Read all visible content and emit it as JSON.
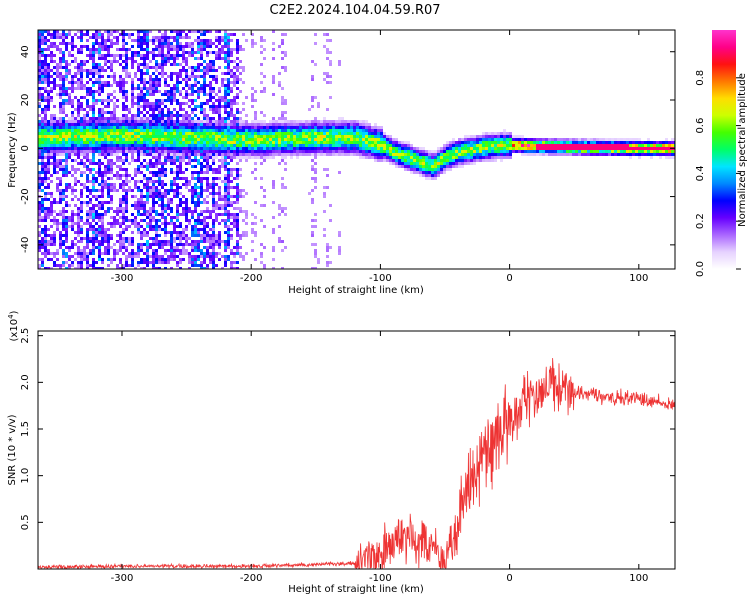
{
  "figure": {
    "title": "C2E2.2024.104.04.59.R07"
  },
  "chart_data": [
    {
      "type": "heatmap",
      "xlabel": "Height of straight line (km)",
      "ylabel": "Frequency (Hz)",
      "xlim": [
        -365,
        128
      ],
      "ylim": [
        -50,
        49
      ],
      "xticks": [
        -300,
        -200,
        -100,
        0,
        100
      ],
      "yticks": [
        -40,
        -20,
        0,
        20,
        40
      ],
      "colorbar": {
        "label": "Normalized spectral amplitude",
        "range": [
          0,
          1
        ],
        "ticks": [
          "0.0",
          "0.2",
          "0.4",
          "0.6",
          "0.8"
        ],
        "colors": [
          "#ffffff",
          "#e6d2ff",
          "#aa66ff",
          "#6600ff",
          "#0000ff",
          "#0088ff",
          "#00e5ff",
          "#00ff66",
          "#44ff00",
          "#ccff00",
          "#ffdd00",
          "#ff7700",
          "#ff1111",
          "#ff0088",
          "#ff33cc"
        ]
      },
      "ridge": {
        "x": [
          -365,
          -300,
          -250,
          -200,
          -150,
          -120,
          -100,
          -90,
          -80,
          -70,
          -60,
          -50,
          -40,
          -30,
          -20,
          -10,
          0,
          20,
          50,
          100,
          128
        ],
        "y": [
          5,
          6,
          5,
          4,
          5,
          5,
          2,
          -1,
          -3,
          -5,
          -7,
          -3,
          -1,
          0,
          1,
          1.5,
          2,
          1.5,
          1,
          0.5,
          0.5
        ]
      }
    },
    {
      "type": "line",
      "xlabel": "Height of straight line (km)",
      "ylabel": "SNR (10 * v/v)",
      "y_multiplier": "(x10",
      "y_multiplier_exp": "4",
      "y_multiplier_close": ")",
      "xlim": [
        -365,
        128
      ],
      "ylim": [
        0,
        2.55
      ],
      "xticks": [
        -300,
        -200,
        -100,
        0,
        100
      ],
      "yticks": [
        0.5,
        1.0,
        1.5,
        2.0,
        2.5
      ],
      "ytick_labels": [
        "0.5",
        "1.0",
        "1.5",
        "2.0",
        "2.5"
      ],
      "series": [
        {
          "color": "#ee3333",
          "x": [
            -365,
            -300,
            -250,
            -200,
            -150,
            -120,
            -110,
            -100,
            -90,
            -80,
            -70,
            -60,
            -55,
            -50,
            -45,
            -40,
            -35,
            -30,
            -25,
            -20,
            -15,
            -10,
            -5,
            0,
            5,
            10,
            15,
            20,
            25,
            30,
            35,
            40,
            50,
            60,
            70,
            80,
            90,
            100,
            110,
            120,
            128
          ],
          "y": [
            0.02,
            0.03,
            0.03,
            0.03,
            0.05,
            0.06,
            0.08,
            0.15,
            0.25,
            0.35,
            0.3,
            0.22,
            0.15,
            0.1,
            0.25,
            0.5,
            0.75,
            0.95,
            1.05,
            1.2,
            1.3,
            1.4,
            1.45,
            1.55,
            1.65,
            1.75,
            1.8,
            1.85,
            1.9,
            2.0,
            1.95,
            1.9,
            1.9,
            1.88,
            1.86,
            1.84,
            1.83,
            1.82,
            1.8,
            1.78,
            1.76
          ]
        }
      ]
    }
  ]
}
